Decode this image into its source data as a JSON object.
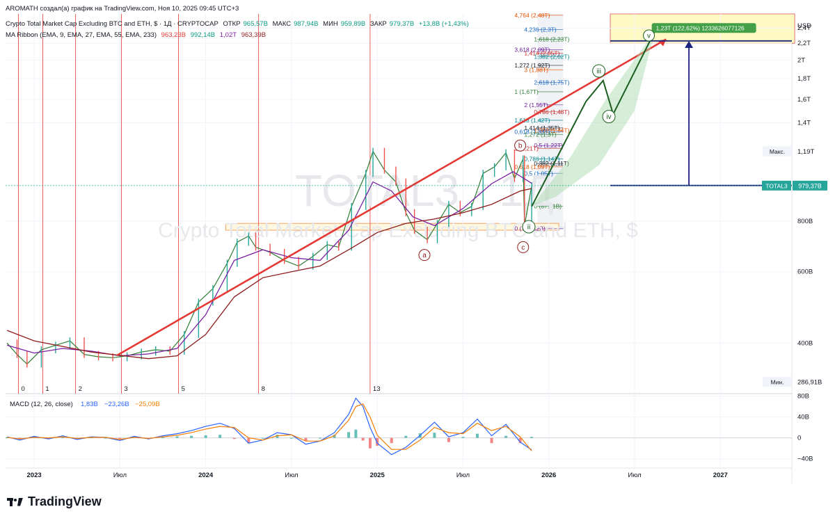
{
  "header": {
    "author_line": "AROMATH создал(а) график на TradingView.com, Ноя 10, 2025 09:45 UTC+3",
    "symbol_title": "Crypto Total Market Cap Excluding BTC and ETH, $ · 1Д · CRYPTOCAP",
    "ohlc": {
      "open_label": "ОТКР",
      "open": "965,57В",
      "high_label": "МАКС",
      "high": "987,94В",
      "low_label": "МИН",
      "low": "959,89В",
      "close_label": "ЗАКР",
      "close": "979,37В",
      "change": "+13,8В (+1,43%)"
    },
    "ma_ribbon_label": "MA Ribbon (EMA, 9, EMA, 27, EMA, 55, EMA, 233)",
    "ma_values": [
      "963,23В",
      "992,14В",
      "1,02Т",
      "963,39В"
    ]
  },
  "watermark": {
    "symbol": "TOTAL3 · 1Д",
    "description": "Crypto Total Market Cap Excluding BTC and ETH, $"
  },
  "brand": {
    "name": "TradingView"
  },
  "colors": {
    "red": "#e53935",
    "green": "#1b5e20",
    "navy": "#1a237e",
    "ma_fast": "#7b1fa2",
    "ma_slow": "#8e1b1b",
    "macd": "#2962ff",
    "signal": "#f57c00"
  },
  "chart_data": [
    {
      "type": "line",
      "title": "Crypto Total Market Cap Excluding BTC and ETH, $",
      "price_axis_label": "USD",
      "y_scale": "log",
      "ylim": [
        300,
        2600
      ],
      "y_ticks": [
        {
          "value": 2400,
          "label": "2,4Т"
        },
        {
          "value": 2200,
          "label": "2,2Т"
        },
        {
          "value": 2000,
          "label": "2Т"
        },
        {
          "value": 1800,
          "label": "1,8Т"
        },
        {
          "value": 1600,
          "label": "1,6Т"
        },
        {
          "value": 1400,
          "label": "1,4Т"
        },
        {
          "value": 800,
          "label": "800В"
        },
        {
          "value": 600,
          "label": "600В"
        },
        {
          "value": 400,
          "label": "400В"
        }
      ],
      "x_ticks": [
        {
          "t": 0,
          "label": "2023"
        },
        {
          "t": 6,
          "label": "Июл"
        },
        {
          "t": 12,
          "label": "2024"
        },
        {
          "t": 18,
          "label": "Июл"
        },
        {
          "t": 24,
          "label": "2025"
        },
        {
          "t": 30,
          "label": "Июл"
        },
        {
          "t": 36,
          "label": "2026"
        },
        {
          "t": 42,
          "label": "Июл"
        },
        {
          "t": 48,
          "label": "2027"
        }
      ],
      "x_range_months": [
        -2,
        53
      ],
      "price_series": {
        "name": "TOTAL3",
        "t": [
          -1.9,
          -1.2,
          -0.5,
          0.5,
          1.5,
          2.5,
          3.5,
          4.5,
          5.5,
          6.5,
          7.5,
          8.5,
          9.5,
          10.5,
          11.5,
          12.5,
          13.5,
          14.2,
          15,
          15.5,
          16.5,
          17.5,
          18.5,
          19.5,
          20.5,
          21.3,
          22.2,
          23.2,
          23.7,
          24.5,
          25.3,
          26,
          26.6,
          27.5,
          28.2,
          29,
          29.8,
          30.6,
          31.4,
          32.2,
          33,
          33.6,
          34.2,
          34.3,
          34.8
        ],
        "values": [
          400,
          375,
          355,
          385,
          395,
          405,
          375,
          370,
          368,
          372,
          380,
          385,
          382,
          420,
          505,
          545,
          630,
          710,
          735,
          690,
          670,
          640,
          620,
          655,
          700,
          690,
          870,
          1050,
          1190,
          1070,
          1000,
          840,
          760,
          720,
          790,
          880,
          840,
          870,
          1050,
          1090,
          1180,
          1020,
          1140,
          780,
          979
        ]
      },
      "ma_series": [
        {
          "name": "EMA 27/55",
          "t": [
            -1.9,
            0,
            2,
            4,
            6,
            8,
            10,
            12,
            14,
            16,
            18,
            20,
            22,
            23.7,
            25,
            26.5,
            28,
            30,
            32,
            33.5,
            34.8
          ],
          "values": [
            395,
            378,
            388,
            382,
            372,
            376,
            388,
            470,
            640,
            680,
            650,
            640,
            760,
            1000,
            950,
            820,
            780,
            860,
            990,
            1060,
            992
          ]
        },
        {
          "name": "EMA 233",
          "t": [
            -1.9,
            0,
            4,
            8,
            10,
            12,
            14,
            16,
            18,
            20,
            22,
            24,
            26,
            28,
            30,
            32,
            34,
            34.8
          ],
          "values": [
            430,
            405,
            380,
            366,
            372,
            420,
            520,
            580,
            600,
            620,
            680,
            750,
            790,
            810,
            840,
            880,
            950,
            963
          ]
        }
      ],
      "last_price": {
        "value": 979.37,
        "label": "TOTAL3",
        "price_label": "979,37В"
      },
      "max_marker": {
        "label": "Макс.",
        "value": 1190,
        "price_label": "1,19Т"
      },
      "min_marker": {
        "label": "Мин.",
        "value": 286.91,
        "price_label": "286,91В"
      },
      "cycle_lines": [
        {
          "t": -1.1,
          "label": "0"
        },
        {
          "t": 0.6,
          "label": "1"
        },
        {
          "t": 2.9,
          "label": "2"
        },
        {
          "t": 6.1,
          "label": "3"
        },
        {
          "t": 10.1,
          "label": "5"
        },
        {
          "t": 15.7,
          "label": "8"
        },
        {
          "t": 23.5,
          "label": "13"
        }
      ],
      "fib_extension_labels": [
        {
          "value": 2580,
          "label": "4,764 (2,48Т)"
        },
        {
          "value": 2380,
          "label": "4,236 (2,3Т)"
        },
        {
          "value": 2250,
          "label": "1,618 (2,23Т)"
        },
        {
          "value": 2120,
          "label": "3,618 (2,09Т)"
        },
        {
          "value": 2080,
          "label": "1,414 (2,05Т)"
        },
        {
          "value": 2040,
          "label": "1,382 (2,02Т)"
        },
        {
          "value": 1940,
          "label": "1,272 (1,92Т)"
        },
        {
          "value": 1890,
          "label": "3 (1,88Т)"
        },
        {
          "value": 1760,
          "label": "2,618 (1,75Т)"
        },
        {
          "value": 1670,
          "label": "1 (1,67Т)"
        },
        {
          "value": 1550,
          "label": "2 (1,55Т)"
        },
        {
          "value": 1490,
          "label": "0,786 (1,48Т)"
        },
        {
          "value": 1420,
          "label": "1,618 (1,42Т)"
        },
        {
          "value": 1360,
          "label": "1,414 (1,35Т)"
        },
        {
          "value": 1340,
          "label": "1,382 (1,34Т)"
        },
        {
          "value": 1330,
          "label": "0,618 (1,33Т)"
        },
        {
          "value": 1310,
          "label": "1,272 (1,3Т)"
        },
        {
          "value": 1230,
          "label": "0,5 (1,22Т)"
        },
        {
          "value": 1210,
          "label": "1 (1,21Т)"
        },
        {
          "value": 1140,
          "label": "0,786 (1,14Т)"
        },
        {
          "value": 1110,
          "label": "0,382 (1,11Т)"
        },
        {
          "value": 1090,
          "label": "0,618 (1,09Т)"
        },
        {
          "value": 1050,
          "label": "0,5 (1,05Т)"
        },
        {
          "value": 871.1,
          "label": "0 (871,1В)"
        },
        {
          "value": 766.82,
          "label": "0 (766,82В)"
        }
      ],
      "wave_labels": [
        {
          "label": "a",
          "t": 27.3,
          "value": 660
        },
        {
          "label": "b",
          "t": 34.0,
          "value": 1230
        },
        {
          "label": "c",
          "t": 34.2,
          "value": 690
        },
        {
          "label": "ii",
          "t": 34.6,
          "value": 775
        },
        {
          "label": "iii",
          "t": 39.5,
          "value": 1880
        },
        {
          "label": "iv",
          "t": 40.2,
          "value": 1450
        },
        {
          "label": "v",
          "t": 43.0,
          "value": 2300
        }
      ],
      "projection_label": "1,23Т (122,62%) 1233626077126",
      "projection_path": {
        "t": [
          34.8,
          38.6,
          39.8,
          40.5,
          43.4
        ],
        "values": [
          870,
          1580,
          1780,
          1470,
          2350
        ]
      },
      "trendline": {
        "t": [
          5.8,
          44.2
        ],
        "values": [
          373,
          2250
        ]
      },
      "target_level": {
        "value": 2230,
        "t": [
          40.3,
          53
        ]
      },
      "base_level": {
        "value": 980,
        "t": [
          40.3,
          53
        ]
      }
    },
    {
      "type": "line",
      "title": "MACD (12, 26, close)",
      "legend_values": [
        "1,83В",
        "−23,26В",
        "−25,09В"
      ],
      "ylim": [
        -55,
        82
      ],
      "y_ticks": [
        {
          "value": 80,
          "label": "80В"
        },
        {
          "value": 40,
          "label": "40В"
        },
        {
          "value": 0,
          "label": "0"
        },
        {
          "value": -40,
          "label": "−40В"
        }
      ],
      "series": [
        {
          "name": "MACD",
          "t": [
            -1.9,
            -1,
            0,
            1,
            2,
            3,
            4,
            5,
            6,
            7,
            8,
            9,
            10,
            11,
            12,
            13,
            14,
            15,
            16,
            17,
            18,
            19,
            20,
            21,
            22,
            22.5,
            23,
            23.5,
            24,
            25,
            26,
            27,
            28,
            29,
            30,
            31,
            32,
            33,
            34,
            34.8
          ],
          "values": [
            2,
            -4,
            3,
            -2,
            4,
            -3,
            2,
            1,
            -5,
            3,
            -2,
            4,
            8,
            14,
            22,
            28,
            18,
            -10,
            -4,
            10,
            6,
            -12,
            -6,
            10,
            45,
            76,
            60,
            20,
            -10,
            -32,
            -18,
            5,
            30,
            2,
            10,
            36,
            4,
            26,
            -8,
            -23
          ]
        },
        {
          "name": "Signal",
          "t": [
            -1.9,
            -1,
            0,
            1,
            2,
            3,
            4,
            5,
            6,
            7,
            8,
            9,
            10,
            11,
            12,
            13,
            14,
            15,
            16,
            17,
            18,
            19,
            20,
            21,
            22,
            22.5,
            23,
            23.5,
            24,
            25,
            26,
            27,
            28,
            29,
            30,
            31,
            32,
            33,
            34,
            34.8
          ],
          "values": [
            1,
            -2,
            1,
            0,
            2,
            -1,
            1,
            1,
            -3,
            1,
            -1,
            2,
            5,
            10,
            17,
            22,
            20,
            0,
            -4,
            4,
            6,
            -6,
            -6,
            4,
            34,
            60,
            65,
            40,
            5,
            -22,
            -22,
            -4,
            20,
            10,
            8,
            28,
            14,
            22,
            2,
            -25
          ]
        }
      ]
    }
  ]
}
